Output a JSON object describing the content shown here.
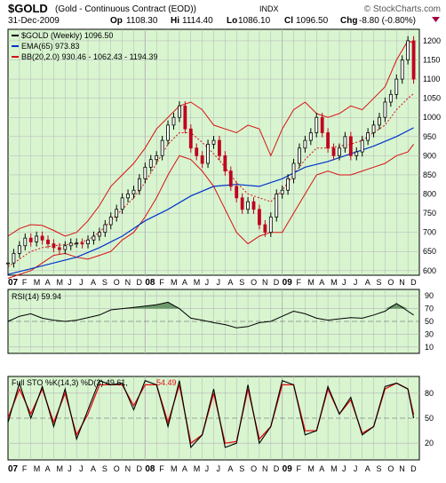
{
  "header": {
    "symbol": "$GOLD",
    "name": "(Gold - Continuous Contract (EOD))",
    "exchange": "INDX",
    "copyright": "© StockCharts.com",
    "date": "31-Dec-2009",
    "op_label": "Op",
    "op": "1108.30",
    "hi_label": "Hi",
    "hi": "1114.40",
    "lo_label": "Lo",
    "lo": "1086.10",
    "cl_label": "Cl",
    "cl": "1096.50",
    "chg_label": "Chg",
    "chg": "-8.80 (-0.80%)"
  },
  "colors": {
    "panel_bg": "#d8f5d0",
    "grid": "#b4b4b4",
    "price": "#000000",
    "candle_down": "#c00020",
    "ema": "#0033cc",
    "bb": "#d81010",
    "stoch_k": "#000000",
    "stoch_d": "#e01010",
    "rsi_fill": "#5a8a5a"
  },
  "chart_data": [
    {
      "type": "line",
      "panel": "price",
      "legend": [
        {
          "label": "$GOLD (Weekly) 1096.50",
          "color": "#000000"
        },
        {
          "label": "EMA(65) 973.83",
          "color": "#0033cc"
        },
        {
          "label": "BB(20,2.0) 930.46 - 1062.43 - 1194.39",
          "color": "#d81010"
        }
      ],
      "yticks": [
        600,
        650,
        700,
        750,
        800,
        850,
        900,
        950,
        1000,
        1050,
        1100,
        1150,
        1200
      ],
      "ylim": [
        588,
        1230
      ],
      "x_months": [
        "07",
        "F",
        "M",
        "A",
        "M",
        "J",
        "J",
        "A",
        "S",
        "O",
        "N",
        "D",
        "08",
        "F",
        "M",
        "A",
        "M",
        "J",
        "J",
        "A",
        "S",
        "O",
        "N",
        "D",
        "09",
        "F",
        "M",
        "A",
        "M",
        "J",
        "J",
        "A",
        "S",
        "O",
        "N",
        "D"
      ],
      "series": [
        {
          "name": "$GOLD",
          "x": [
            0,
            0.5,
            1,
            1.5,
            2,
            2.5,
            3,
            3.5,
            4,
            4.5,
            5,
            5.5,
            6,
            6.5,
            7,
            7.5,
            8,
            8.5,
            9,
            9.5,
            10,
            10.5,
            11,
            11.5,
            12,
            12.5,
            13,
            13.5,
            14,
            14.5,
            15,
            15.5,
            16,
            16.5,
            17,
            17.5,
            18,
            18.5,
            19,
            19.5,
            20,
            20.5,
            21,
            21.5,
            22,
            22.5,
            23,
            23.5,
            24,
            24.5,
            25,
            25.5,
            26,
            26.5,
            27,
            27.5,
            28,
            28.5,
            29,
            29.5,
            30,
            30.5,
            31,
            31.5,
            32,
            32.5,
            33,
            33.5,
            34,
            34.5,
            35,
            35.5
          ],
          "values": [
            620,
            645,
            665,
            685,
            675,
            690,
            680,
            670,
            660,
            655,
            665,
            672,
            672,
            670,
            680,
            690,
            700,
            720,
            740,
            760,
            790,
            800,
            810,
            840,
            870,
            890,
            900,
            940,
            980,
            1000,
            1030,
            970,
            920,
            900,
            880,
            930,
            940,
            900,
            860,
            820,
            790,
            760,
            780,
            760,
            720,
            700,
            740,
            800,
            810,
            840,
            880,
            920,
            940,
            960,
            1000,
            960,
            920,
            900,
            920,
            950,
            900,
            910,
            940,
            960,
            980,
            1000,
            1040,
            1060,
            1100,
            1150,
            1200,
            1100
          ]
        },
        {
          "name": "EMA(65)",
          "x": [
            0,
            2,
            4,
            6,
            8,
            10,
            12,
            14,
            16,
            18,
            20,
            22,
            24,
            26,
            28,
            30,
            32,
            34,
            35.5
          ],
          "values": [
            590,
            605,
            620,
            635,
            660,
            690,
            730,
            760,
            795,
            820,
            825,
            820,
            840,
            870,
            885,
            905,
            925,
            950,
            973
          ]
        },
        {
          "name": "BB upper",
          "x": [
            0,
            1,
            2,
            3,
            4,
            5,
            6,
            7,
            8,
            9,
            10,
            11,
            12,
            13,
            14,
            15,
            16,
            17,
            18,
            19,
            20,
            21,
            22,
            23,
            24,
            25,
            26,
            27,
            28,
            29,
            30,
            31,
            32,
            33,
            34,
            35,
            35.5
          ],
          "values": [
            690,
            710,
            720,
            718,
            705,
            690,
            700,
            730,
            770,
            820,
            850,
            880,
            920,
            970,
            1000,
            1030,
            1040,
            1020,
            980,
            970,
            960,
            980,
            970,
            900,
            970,
            1020,
            1040,
            1010,
            1000,
            1010,
            1030,
            1020,
            1050,
            1080,
            1150,
            1200,
            1194
          ]
        },
        {
          "name": "BB middle",
          "x": [
            0,
            1,
            2,
            3,
            4,
            5,
            6,
            7,
            8,
            9,
            10,
            11,
            12,
            13,
            14,
            15,
            16,
            17,
            18,
            19,
            20,
            21,
            22,
            23,
            24,
            25,
            26,
            27,
            28,
            29,
            30,
            31,
            32,
            33,
            34,
            35,
            35.5
          ],
          "values": [
            610,
            630,
            650,
            660,
            665,
            668,
            670,
            680,
            700,
            730,
            760,
            790,
            830,
            880,
            930,
            960,
            960,
            935,
            905,
            870,
            830,
            800,
            790,
            780,
            810,
            850,
            890,
            920,
            920,
            925,
            930,
            940,
            960,
            980,
            1020,
            1050,
            1062
          ]
        },
        {
          "name": "BB lower",
          "x": [
            0,
            1,
            2,
            3,
            4,
            5,
            6,
            7,
            8,
            9,
            10,
            11,
            12,
            13,
            14,
            15,
            16,
            17,
            18,
            19,
            20,
            21,
            22,
            23,
            24,
            25,
            26,
            27,
            28,
            29,
            30,
            31,
            32,
            33,
            34,
            35,
            35.5
          ],
          "values": [
            580,
            590,
            600,
            620,
            640,
            645,
            635,
            630,
            640,
            650,
            680,
            700,
            740,
            790,
            850,
            900,
            890,
            860,
            820,
            760,
            700,
            670,
            690,
            700,
            700,
            750,
            800,
            850,
            860,
            850,
            850,
            860,
            870,
            880,
            900,
            910,
            930
          ]
        }
      ]
    },
    {
      "type": "line",
      "panel": "rsi",
      "legend": [
        {
          "label": "RSI(14) 59.94",
          "color": "#000000"
        }
      ],
      "yticks": [
        90,
        70,
        50,
        30,
        10
      ],
      "ylim": [
        0,
        100
      ],
      "series": [
        {
          "name": "RSI(14)",
          "x": [
            0,
            1,
            2,
            3,
            4,
            5,
            6,
            7,
            8,
            9,
            10,
            11,
            12,
            13,
            14,
            15,
            16,
            17,
            18,
            19,
            20,
            21,
            22,
            23,
            24,
            25,
            26,
            27,
            28,
            29,
            30,
            31,
            32,
            33,
            34,
            35,
            35.5
          ],
          "values": [
            50,
            58,
            62,
            55,
            52,
            50,
            52,
            56,
            60,
            68,
            70,
            72,
            74,
            76,
            80,
            70,
            55,
            52,
            48,
            45,
            40,
            42,
            48,
            50,
            58,
            66,
            62,
            55,
            52,
            54,
            56,
            55,
            60,
            66,
            78,
            66,
            60
          ]
        }
      ]
    },
    {
      "type": "line",
      "panel": "stochastic",
      "legend": [
        {
          "label": "Full STO %K(14,3) %D(3) 49.61,",
          "color": "#000000"
        },
        {
          "label": "54.49",
          "color": "#e01010"
        }
      ],
      "yticks": [
        80,
        50,
        20
      ],
      "ylim": [
        0,
        100
      ],
      "x_months": [
        "07",
        "F",
        "M",
        "A",
        "M",
        "J",
        "J",
        "A",
        "S",
        "O",
        "N",
        "D",
        "08",
        "F",
        "M",
        "A",
        "M",
        "J",
        "J",
        "A",
        "S",
        "O",
        "N",
        "D",
        "09",
        "F",
        "M",
        "A",
        "M",
        "J",
        "J",
        "A",
        "S",
        "O",
        "N",
        "D"
      ],
      "series": [
        {
          "name": "%K",
          "x": [
            0,
            1,
            2,
            3,
            4,
            5,
            6,
            7,
            8,
            9,
            10,
            11,
            12,
            13,
            14,
            15,
            16,
            17,
            18,
            19,
            20,
            21,
            22,
            23,
            24,
            25,
            26,
            27,
            28,
            29,
            30,
            31,
            32,
            33,
            34,
            35,
            35.5
          ],
          "values": [
            45,
            92,
            50,
            88,
            40,
            85,
            25,
            60,
            95,
            90,
            92,
            60,
            95,
            90,
            40,
            95,
            15,
            30,
            85,
            15,
            20,
            90,
            20,
            40,
            95,
            90,
            30,
            35,
            88,
            55,
            75,
            30,
            40,
            88,
            92,
            85,
            50
          ]
        },
        {
          "name": "%D",
          "x": [
            0,
            1,
            2,
            3,
            4,
            5,
            6,
            7,
            8,
            9,
            10,
            11,
            12,
            13,
            14,
            15,
            16,
            17,
            18,
            19,
            20,
            21,
            22,
            23,
            24,
            25,
            26,
            27,
            28,
            29,
            30,
            31,
            32,
            33,
            34,
            35,
            35.5
          ],
          "values": [
            50,
            85,
            55,
            85,
            45,
            80,
            30,
            55,
            90,
            90,
            90,
            65,
            90,
            90,
            45,
            90,
            20,
            30,
            80,
            20,
            22,
            85,
            25,
            40,
            90,
            90,
            35,
            35,
            85,
            55,
            72,
            32,
            40,
            85,
            92,
            85,
            54
          ]
        }
      ]
    }
  ]
}
